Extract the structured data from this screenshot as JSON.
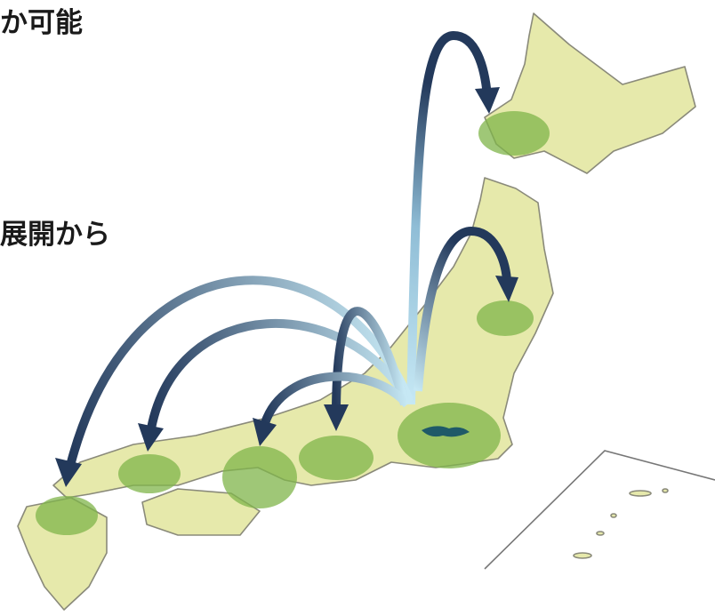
{
  "texts": {
    "top": "か可能",
    "middle": "展開から"
  }
}
